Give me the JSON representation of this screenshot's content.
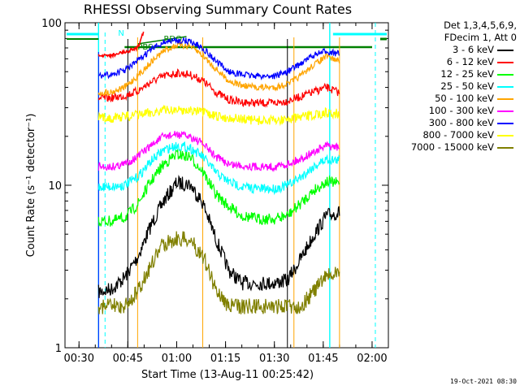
{
  "chart_data": {
    "type": "line",
    "title": "RHESSI Observing Summary Count Rates",
    "xlabel": "Start Time (13-Aug-11 00:25:42)",
    "ylabel": "Count Rate (s⁻¹ detector⁻¹)",
    "y_scale": "log",
    "ylim": [
      1,
      100
    ],
    "y_ticks": [
      "1",
      "10",
      "100"
    ],
    "x_range_minutes": [
      25.7,
      125
    ],
    "x_ticks": [
      {
        "label": "00:30",
        "minute": 30
      },
      {
        "label": "00:45",
        "minute": 45
      },
      {
        "label": "01:00",
        "minute": 60
      },
      {
        "label": "01:15",
        "minute": 75
      },
      {
        "label": "01:30",
        "minute": 90
      },
      {
        "label": "01:45",
        "minute": 105
      },
      {
        "label": "02:00",
        "minute": 120
      }
    ],
    "legend_header": [
      "Det 1,3,4,5,6,9,",
      "FDecim 1, Att 0"
    ],
    "series": [
      {
        "name": "3 - 6 keV",
        "color": "#000000",
        "values": [
          [
            36,
            2.2
          ],
          [
            40,
            2.3
          ],
          [
            44,
            2.7
          ],
          [
            48,
            3.6
          ],
          [
            52,
            5.6
          ],
          [
            56,
            8.0
          ],
          [
            60,
            10.3
          ],
          [
            64,
            10.2
          ],
          [
            68,
            7.8
          ],
          [
            72,
            4.7
          ],
          [
            76,
            3.0
          ],
          [
            80,
            2.5
          ],
          [
            85,
            2.5
          ],
          [
            90,
            2.5
          ],
          [
            94,
            2.6
          ],
          [
            98,
            3.5
          ],
          [
            102,
            4.9
          ],
          [
            106,
            6.5
          ],
          [
            110,
            6.8
          ]
        ]
      },
      {
        "name": "6 - 12 keV",
        "color": "#ff0000",
        "values": [
          [
            36,
            34
          ],
          [
            40,
            34.5
          ],
          [
            44,
            35.5
          ],
          [
            48,
            38
          ],
          [
            52,
            43
          ],
          [
            56,
            47
          ],
          [
            60,
            49
          ],
          [
            64,
            48
          ],
          [
            68,
            44
          ],
          [
            72,
            37.5
          ],
          [
            76,
            33.5
          ],
          [
            80,
            32.5
          ],
          [
            85,
            32
          ],
          [
            90,
            32
          ],
          [
            94,
            33
          ],
          [
            98,
            35
          ],
          [
            102,
            37.5
          ],
          [
            106,
            40
          ],
          [
            110,
            37
          ]
        ]
      },
      {
        "name": "12 - 25 keV",
        "color": "#00ff00",
        "values": [
          [
            36,
            6.0
          ],
          [
            40,
            6.0
          ],
          [
            44,
            6.3
          ],
          [
            48,
            7.6
          ],
          [
            52,
            10.5
          ],
          [
            56,
            13.5
          ],
          [
            60,
            15.5
          ],
          [
            64,
            15.0
          ],
          [
            68,
            12.2
          ],
          [
            72,
            8.8
          ],
          [
            76,
            7.4
          ],
          [
            80,
            6.5
          ],
          [
            85,
            6.2
          ],
          [
            90,
            6.2
          ],
          [
            94,
            6.5
          ],
          [
            98,
            7.7
          ],
          [
            102,
            9.3
          ],
          [
            106,
            10.5
          ],
          [
            110,
            10.3
          ]
        ]
      },
      {
        "name": "25 - 50 keV",
        "color": "#00ffff",
        "values": [
          [
            36,
            9.8
          ],
          [
            40,
            9.8
          ],
          [
            44,
            10.0
          ],
          [
            48,
            11.2
          ],
          [
            52,
            14.0
          ],
          [
            56,
            16.5
          ],
          [
            60,
            17.5
          ],
          [
            64,
            17.0
          ],
          [
            68,
            15.0
          ],
          [
            72,
            12.0
          ],
          [
            76,
            10.5
          ],
          [
            80,
            9.8
          ],
          [
            85,
            9.5
          ],
          [
            90,
            9.5
          ],
          [
            94,
            10.0
          ],
          [
            98,
            11.2
          ],
          [
            102,
            13.0
          ],
          [
            106,
            14.5
          ],
          [
            110,
            14.2
          ]
        ]
      },
      {
        "name": "50 - 100 keV",
        "color": "#ffa500",
        "values": [
          [
            36,
            37
          ],
          [
            40,
            37.5
          ],
          [
            44,
            40
          ],
          [
            48,
            47
          ],
          [
            52,
            57
          ],
          [
            56,
            67
          ],
          [
            60,
            73
          ],
          [
            64,
            72
          ],
          [
            68,
            63
          ],
          [
            72,
            52
          ],
          [
            76,
            44
          ],
          [
            80,
            41
          ],
          [
            85,
            40
          ],
          [
            90,
            40
          ],
          [
            94,
            42
          ],
          [
            98,
            47
          ],
          [
            102,
            55
          ],
          [
            106,
            62
          ],
          [
            110,
            58
          ]
        ]
      },
      {
        "name": "100 - 300 keV",
        "color": "#ff00ff",
        "values": [
          [
            36,
            13.0
          ],
          [
            40,
            13.0
          ],
          [
            44,
            13.5
          ],
          [
            48,
            15.0
          ],
          [
            52,
            17.5
          ],
          [
            56,
            20.0
          ],
          [
            60,
            20.5
          ],
          [
            64,
            20.0
          ],
          [
            68,
            18.0
          ],
          [
            72,
            15.0
          ],
          [
            76,
            13.5
          ],
          [
            80,
            13.2
          ],
          [
            85,
            13.0
          ],
          [
            90,
            13.0
          ],
          [
            94,
            13.5
          ],
          [
            98,
            14.5
          ],
          [
            102,
            16.0
          ],
          [
            106,
            17.5
          ],
          [
            110,
            17.0
          ]
        ]
      },
      {
        "name": "300 - 800 keV",
        "color": "#0000ff",
        "values": [
          [
            36,
            47
          ],
          [
            40,
            48
          ],
          [
            44,
            51
          ],
          [
            48,
            58
          ],
          [
            52,
            68
          ],
          [
            56,
            76
          ],
          [
            60,
            78
          ],
          [
            64,
            77
          ],
          [
            68,
            70
          ],
          [
            72,
            58
          ],
          [
            76,
            50
          ],
          [
            80,
            48
          ],
          [
            85,
            47
          ],
          [
            90,
            47
          ],
          [
            94,
            50
          ],
          [
            98,
            56
          ],
          [
            102,
            63
          ],
          [
            106,
            67
          ],
          [
            110,
            64
          ]
        ]
      },
      {
        "name": "800 - 7000 keV",
        "color": "#ffff00",
        "values": [
          [
            36,
            26
          ],
          [
            40,
            26
          ],
          [
            44,
            26.5
          ],
          [
            48,
            27
          ],
          [
            52,
            28
          ],
          [
            56,
            29
          ],
          [
            60,
            29
          ],
          [
            64,
            29
          ],
          [
            68,
            28
          ],
          [
            72,
            26.5
          ],
          [
            76,
            26
          ],
          [
            80,
            25.5
          ],
          [
            85,
            25
          ],
          [
            90,
            25
          ],
          [
            94,
            25.5
          ],
          [
            98,
            26
          ],
          [
            102,
            27
          ],
          [
            106,
            28
          ],
          [
            110,
            27.5
          ]
        ]
      },
      {
        "name": "7000 - 15000 keV",
        "color": "#808000",
        "values": [
          [
            36,
            1.8
          ],
          [
            40,
            1.8
          ],
          [
            44,
            1.8
          ],
          [
            48,
            2.2
          ],
          [
            52,
            3.2
          ],
          [
            56,
            4.4
          ],
          [
            60,
            4.7
          ],
          [
            64,
            4.6
          ],
          [
            68,
            3.7
          ],
          [
            72,
            2.3
          ],
          [
            76,
            1.8
          ],
          [
            80,
            1.8
          ],
          [
            85,
            1.8
          ],
          [
            90,
            1.8
          ],
          [
            94,
            1.8
          ],
          [
            98,
            1.8
          ],
          [
            102,
            2.2
          ],
          [
            106,
            2.8
          ],
          [
            110,
            2.8
          ]
        ]
      }
    ],
    "extra_red_segment": {
      "color": "#ff0000",
      "values": [
        [
          36,
          63
        ],
        [
          40,
          63
        ],
        [
          44,
          66
        ],
        [
          48,
          70
        ],
        [
          50,
          90
        ]
      ]
    },
    "annotations": [
      {
        "text": "N",
        "color": "#00ffff"
      },
      {
        "text": "RDO",
        "color": "#008000"
      },
      {
        "text": "PBS",
        "color": "#008000"
      }
    ],
    "footer_date": "19-Oct-2021 08:30"
  }
}
